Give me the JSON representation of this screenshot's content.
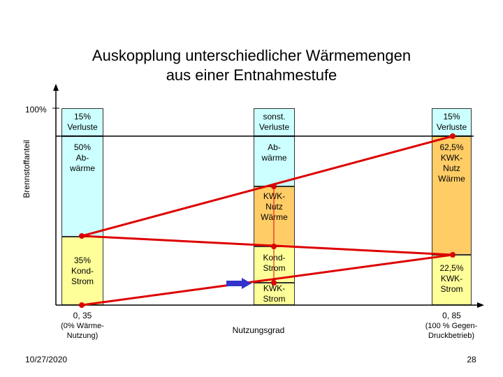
{
  "title_line1": "Auskopplung unterschiedlicher Wärmemengen",
  "title_line2": "aus einer Entnahmestufe",
  "y_axis_label": "Brennstoffanteil",
  "y_tick_100": "100%",
  "x_label": "Nutzungsgrad",
  "x_tick_left": "0, 35",
  "x_tick_left_note_1": "(0% Wärme-",
  "x_tick_left_note_2": "Nutzung)",
  "x_tick_right": "0, 85",
  "x_tick_right_note_1": "(100 % Gegen-",
  "x_tick_right_note_2": "Druckbetrieb)",
  "col_left": {
    "losses_1": "15%",
    "losses_2": "Verluste",
    "waste_1": "50%",
    "waste_2": "Ab-",
    "waste_3": "wärme",
    "power_1": "35%",
    "power_2": "Kond-",
    "power_3": "Strom"
  },
  "col_mid": {
    "losses_1": "sonst.",
    "losses_2": "Verluste",
    "waste_1": "Ab-",
    "waste_2": "wärme",
    "heat_1": "KWK-",
    "heat_2": "Nutz",
    "heat_3": "Wärme",
    "cond_1": "Kond-",
    "cond_2": "Strom",
    "chp_1": "KWK-",
    "chp_2": "Strom"
  },
  "col_right": {
    "losses_1": "15%",
    "losses_2": "Verluste",
    "heat_1": "62,5%",
    "heat_2": "KWK-",
    "heat_3": "Nutz",
    "heat_4": "Wärme",
    "power_1": "22,5%",
    "power_2": "KWK-",
    "power_3": "Strom"
  },
  "footer_date": "10/27/2020",
  "footer_page": "28",
  "colors": {
    "blue": "#ccffff",
    "yellow": "#ffff99",
    "orange": "#ffcc66",
    "red": "#dd0000",
    "arrow": "#3333cc"
  }
}
